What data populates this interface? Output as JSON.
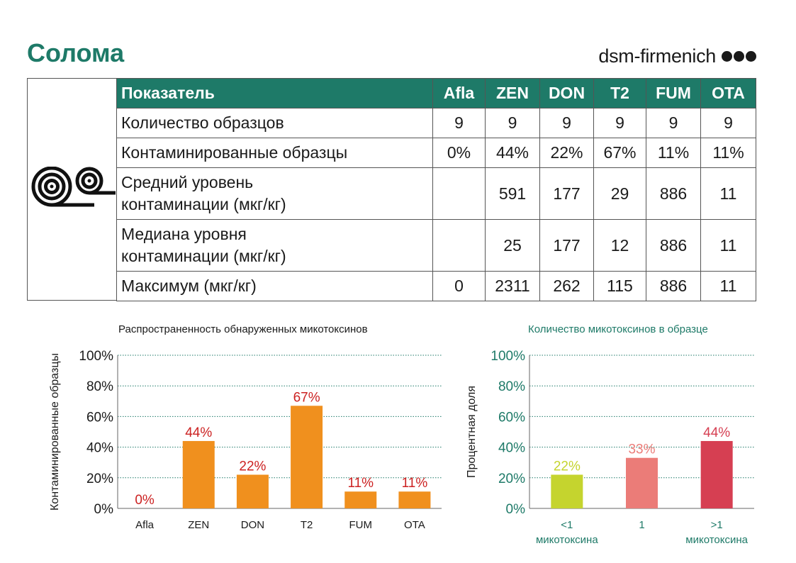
{
  "page": {
    "title": "Солома",
    "brand": "dsm-firmenich"
  },
  "colors": {
    "brand_green": "#1e7a68",
    "bar_orange": "#f0901e",
    "label_red": "#cc2222",
    "lime": "#c5d42e",
    "pink": "#eb7c78",
    "crimson": "#d63f52"
  },
  "icon": {
    "name": "hay-bale-icon"
  },
  "table": {
    "header_label": "Показатель",
    "columns": [
      "Afla",
      "ZEN",
      "DON",
      "T2",
      "FUM",
      "OTA"
    ],
    "rows": [
      {
        "label": [
          "Количество образцов"
        ],
        "values": [
          "9",
          "9",
          "9",
          "9",
          "9",
          "9"
        ]
      },
      {
        "label": [
          "Контаминированные образцы"
        ],
        "values": [
          "0%",
          "44%",
          "22%",
          "67%",
          "11%",
          "11%"
        ]
      },
      {
        "label": [
          "Средний уровень",
          "контаминации (мкг/кг)"
        ],
        "values": [
          "",
          "591",
          "177",
          "29",
          "886",
          "11"
        ]
      },
      {
        "label": [
          "Медиана уровня",
          "контаминации (мкг/кг)"
        ],
        "values": [
          "",
          "25",
          "177",
          "12",
          "886",
          "11"
        ]
      },
      {
        "label": [
          "Максимум (мкг/кг)"
        ],
        "values": [
          "0",
          "2311",
          "262",
          "115",
          "886",
          "11"
        ]
      }
    ]
  },
  "chart_data": [
    {
      "type": "bar",
      "title": "Распространенность обнаруженных микотоксинов",
      "ylabel": "Контаминированные образцы",
      "xlabel": "",
      "categories": [
        "Afla",
        "ZEN",
        "DON",
        "T2",
        "FUM",
        "OTA"
      ],
      "values": [
        0,
        44,
        22,
        67,
        11,
        11
      ],
      "data_labels": [
        "0%",
        "44%",
        "22%",
        "67%",
        "11%",
        "11%"
      ],
      "ylim": [
        0,
        100
      ],
      "yticks": [
        "0%",
        "20%",
        "40%",
        "60%",
        "80%",
        "100%"
      ],
      "grid": true,
      "legend": "none"
    },
    {
      "type": "bar",
      "title": "Количество микотоксинов в образце",
      "ylabel": "Процентная доля",
      "xlabel": "",
      "categories": [
        [
          "<1",
          "микотоксина"
        ],
        [
          "1"
        ],
        [
          ">1",
          "микотоксина"
        ]
      ],
      "values": [
        22,
        33,
        44
      ],
      "data_labels": [
        "22%",
        "33%",
        "44%"
      ],
      "ylim": [
        0,
        100
      ],
      "yticks": [
        "0%",
        "20%",
        "40%",
        "60%",
        "80%",
        "100%"
      ],
      "grid": true,
      "legend": "none"
    }
  ]
}
